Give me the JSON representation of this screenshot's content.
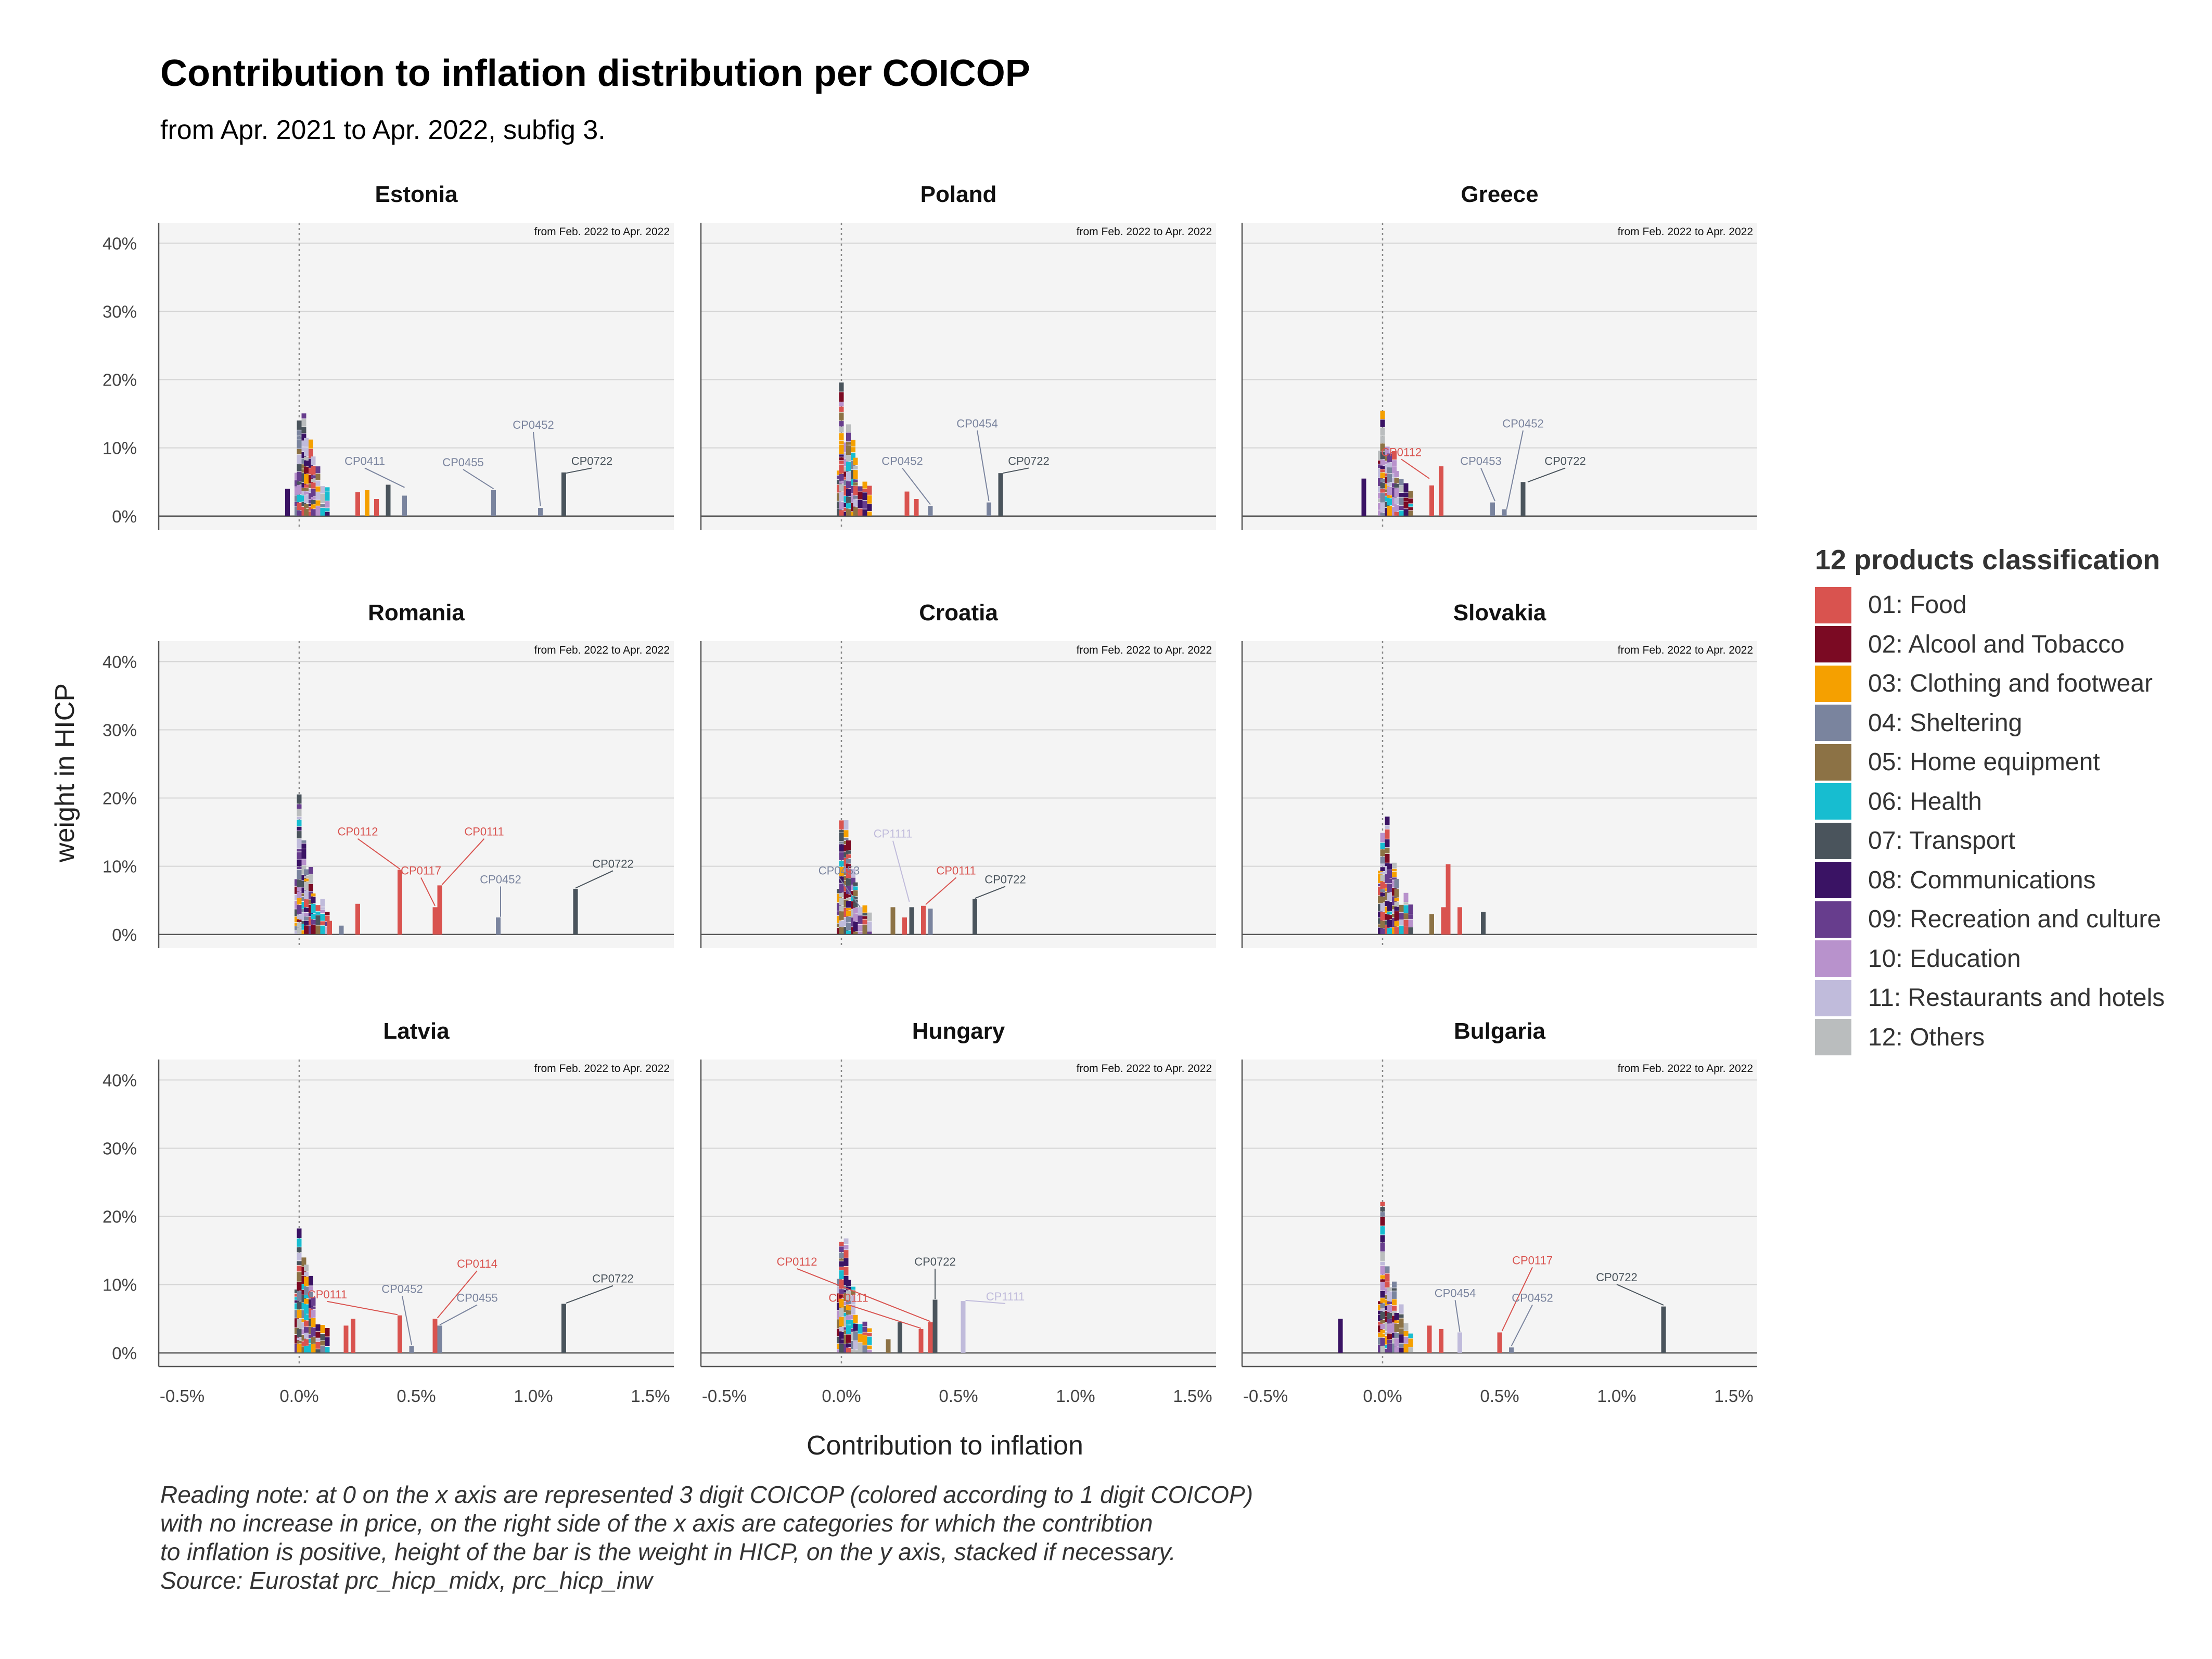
{
  "title": "Contribution to inflation distribution per COICOP",
  "subtitle": "from Apr. 2021 to Apr. 2022, subfig 3.",
  "x_axis_title": "Contribution to inflation",
  "y_axis_title": "weight in HICP",
  "legend": {
    "title": "12 products classification",
    "items": [
      {
        "label": "01: Food",
        "color": "#d9534f"
      },
      {
        "label": "02: Alcool and Tobacco",
        "color": "#7b0a23"
      },
      {
        "label": "03: Clothing and footwear",
        "color": "#f5a000"
      },
      {
        "label": "04: Sheltering",
        "color": "#7a849e"
      },
      {
        "label": "05: Home equipment",
        "color": "#8c7245"
      },
      {
        "label": "06: Health",
        "color": "#17bdd0"
      },
      {
        "label": "07: Transport",
        "color": "#4a545c"
      },
      {
        "label": "08: Communications",
        "color": "#3a1364"
      },
      {
        "label": "09: Recreation and culture",
        "color": "#673d8d"
      },
      {
        "label": "10: Education",
        "color": "#b892cc"
      },
      {
        "label": "11: Restaurants and hotels",
        "color": "#c0bbdb"
      },
      {
        "label": "12: Others",
        "color": "#babdbe"
      }
    ]
  },
  "reading_note": [
    "Reading note: at 0 on the x axis are represented 3 digit COICOP (colored according to 1 digit COICOP)",
    "with no increase in price, on the right side of the x axis are categories for which the contribtion",
    "to inflation is positive, height of the bar is the weight in HICP, on the y axis, stacked if necessary.",
    "Source: Eurostat prc_hicp_midx, prc_hicp_inw"
  ],
  "chart_data": {
    "type": "bar",
    "facets": 9,
    "x_ticks": [
      "-0.5%",
      "0.0%",
      "0.5%",
      "1.0%",
      "1.5%"
    ],
    "x_tick_values": [
      -0.5,
      0.0,
      0.5,
      1.0,
      1.5
    ],
    "y_ticks": [
      "0%",
      "10%",
      "20%",
      "30%",
      "40%"
    ],
    "y_tick_values": [
      0,
      10,
      20,
      30,
      40
    ],
    "xlim": [
      -0.6,
      1.6
    ],
    "ylim": [
      -2,
      43
    ],
    "panel_note": "from Feb. 2022 to Apr. 2022",
    "panels": [
      {
        "name": "Estonia",
        "bars": [
          [
            -0.05,
            4,
            7
          ],
          [
            0.25,
            3.5,
            0
          ],
          [
            0.29,
            3.8,
            2
          ],
          [
            0.33,
            2.5,
            0
          ],
          [
            0.38,
            4.6,
            6
          ],
          [
            0.45,
            3,
            3
          ],
          [
            0.83,
            3.8,
            3
          ],
          [
            1.03,
            1.2,
            3
          ],
          [
            1.13,
            6.4,
            6
          ]
        ],
        "labels": [
          {
            "text": "CP0411",
            "lx": 0.28,
            "ly": 7.5,
            "px": 0.45,
            "py": 4.2,
            "c": 3
          },
          {
            "text": "CP0455",
            "lx": 0.7,
            "ly": 7.3,
            "px": 0.83,
            "py": 4,
            "c": 3
          },
          {
            "text": "CP0452",
            "lx": 1.0,
            "ly": 12.8,
            "px": 1.03,
            "py": 1.5,
            "c": 3
          },
          {
            "text": "CP0722",
            "lx": 1.25,
            "ly": 7.5,
            "px": 1.14,
            "py": 6.3,
            "c": 6
          }
        ]
      },
      {
        "name": "Poland",
        "bars": [
          [
            0.28,
            3.6,
            0
          ],
          [
            0.32,
            2.5,
            0
          ],
          [
            0.38,
            1.5,
            3
          ],
          [
            0.63,
            2,
            3
          ],
          [
            0.68,
            6.3,
            6
          ]
        ],
        "labels": [
          {
            "text": "CP0452",
            "lx": 0.26,
            "ly": 7.5,
            "px": 0.38,
            "py": 1.7,
            "c": 3
          },
          {
            "text": "CP0454",
            "lx": 0.58,
            "ly": 13,
            "px": 0.63,
            "py": 2.2,
            "c": 3
          },
          {
            "text": "CP0722",
            "lx": 0.8,
            "ly": 7.5,
            "px": 0.69,
            "py": 6.3,
            "c": 6
          }
        ]
      },
      {
        "name": "Greece",
        "bars": [
          [
            -0.08,
            5.5,
            7
          ],
          [
            0.21,
            4.5,
            0
          ],
          [
            0.25,
            7.3,
            0
          ],
          [
            0.47,
            2,
            3
          ],
          [
            0.52,
            1,
            3
          ],
          [
            0.6,
            5,
            6
          ]
        ],
        "labels": [
          {
            "text": "CP0112",
            "lx": 0.08,
            "ly": 8.8,
            "px": 0.2,
            "py": 5.5,
            "c": 0
          },
          {
            "text": "CP0453",
            "lx": 0.42,
            "ly": 7.5,
            "px": 0.48,
            "py": 2.2,
            "c": 3
          },
          {
            "text": "CP0452",
            "lx": 0.6,
            "ly": 13,
            "px": 0.53,
            "py": 1,
            "c": 3
          },
          {
            "text": "CP0722",
            "lx": 0.78,
            "ly": 7.5,
            "px": 0.62,
            "py": 5,
            "c": 6
          }
        ]
      },
      {
        "name": "Romania",
        "bars": [
          [
            0.13,
            2,
            0
          ],
          [
            0.18,
            1.3,
            3
          ],
          [
            0.25,
            4.5,
            0
          ],
          [
            0.43,
            9.5,
            0
          ],
          [
            0.58,
            4,
            0
          ],
          [
            0.6,
            7.2,
            0
          ],
          [
            0.85,
            2.5,
            3
          ],
          [
            1.18,
            6.7,
            6
          ]
        ],
        "labels": [
          {
            "text": "CP0112",
            "lx": 0.25,
            "ly": 14.5,
            "px": 0.43,
            "py": 9.6,
            "c": 0
          },
          {
            "text": "CP0117",
            "lx": 0.52,
            "ly": 8.8,
            "px": 0.58,
            "py": 4.2,
            "c": 0
          },
          {
            "text": "CP0111",
            "lx": 0.79,
            "ly": 14.5,
            "px": 0.61,
            "py": 7.3,
            "c": 0
          },
          {
            "text": "CP0452",
            "lx": 0.86,
            "ly": 7.5,
            "px": 0.86,
            "py": 2.6,
            "c": 3
          },
          {
            "text": "CP0722",
            "lx": 1.34,
            "ly": 9.8,
            "px": 1.18,
            "py": 6.8,
            "c": 6
          }
        ]
      },
      {
        "name": "Croatia",
        "bars": [
          [
            0.22,
            4,
            4
          ],
          [
            0.27,
            2.5,
            0
          ],
          [
            0.3,
            4,
            6
          ],
          [
            0.38,
            3.8,
            3
          ],
          [
            0.57,
            5.2,
            6
          ],
          [
            0.35,
            4.2,
            0
          ]
        ],
        "labels": [
          {
            "text": "CP0453",
            "lx": -0.01,
            "ly": 8.8,
            "px": 0.08,
            "py": 4,
            "c": 3
          },
          {
            "text": "CP1111",
            "lx": 0.22,
            "ly": 14.2,
            "px": 0.29,
            "py": 4.8,
            "c": 10
          },
          {
            "text": "CP0111",
            "lx": 0.49,
            "ly": 8.8,
            "px": 0.36,
            "py": 4.4,
            "c": 0
          },
          {
            "text": "CP0722",
            "lx": 0.7,
            "ly": 7.5,
            "px": 0.57,
            "py": 5.3,
            "c": 6
          }
        ]
      },
      {
        "name": "Slovakia",
        "bars": [
          [
            0.21,
            3,
            4
          ],
          [
            0.26,
            4,
            0
          ],
          [
            0.28,
            10.3,
            0
          ],
          [
            0.33,
            4,
            0
          ],
          [
            0.43,
            3.3,
            6
          ]
        ],
        "labels": []
      },
      {
        "name": "Latvia",
        "bars": [
          [
            0.2,
            4,
            0
          ],
          [
            0.23,
            5,
            0
          ],
          [
            0.43,
            5.5,
            0
          ],
          [
            0.48,
            1,
            3
          ],
          [
            0.58,
            5,
            0
          ],
          [
            0.6,
            4,
            3
          ],
          [
            1.13,
            7.2,
            6
          ]
        ],
        "labels": [
          {
            "text": "CP0111",
            "lx": 0.12,
            "ly": 8,
            "px": 0.42,
            "py": 5.6,
            "c": 0
          },
          {
            "text": "CP0452",
            "lx": 0.44,
            "ly": 8.8,
            "px": 0.48,
            "py": 1.2,
            "c": 3
          },
          {
            "text": "CP0114",
            "lx": 0.76,
            "ly": 12.5,
            "px": 0.59,
            "py": 5.1,
            "c": 0
          },
          {
            "text": "CP0455",
            "lx": 0.76,
            "ly": 7.5,
            "px": 0.6,
            "py": 4.1,
            "c": 3
          },
          {
            "text": "CP0722",
            "lx": 1.34,
            "ly": 10.3,
            "px": 1.14,
            "py": 7.3,
            "c": 6
          }
        ]
      },
      {
        "name": "Hungary",
        "bars": [
          [
            0.25,
            4.5,
            6
          ],
          [
            0.2,
            2,
            4
          ],
          [
            0.34,
            3.5,
            0
          ],
          [
            0.38,
            4.5,
            0
          ],
          [
            0.4,
            7.8,
            6
          ],
          [
            0.52,
            7.6,
            10
          ]
        ],
        "labels": [
          {
            "text": "CP0112",
            "lx": -0.19,
            "ly": 12.8,
            "px": 0.38,
            "py": 4.6,
            "c": 0
          },
          {
            "text": "CP0111",
            "lx": 0.03,
            "ly": 7.5,
            "px": 0.34,
            "py": 3.6,
            "c": 0
          },
          {
            "text": "CP0722",
            "lx": 0.4,
            "ly": 12.8,
            "px": 0.4,
            "py": 7.9,
            "c": 6
          },
          {
            "text": "CP1111",
            "lx": 0.7,
            "ly": 7.7,
            "px": 0.53,
            "py": 7.7,
            "c": 10
          }
        ]
      },
      {
        "name": "Bulgaria",
        "bars": [
          [
            -0.18,
            5,
            7
          ],
          [
            0.2,
            4,
            0
          ],
          [
            0.25,
            3.5,
            0
          ],
          [
            0.33,
            3,
            10
          ],
          [
            0.5,
            3,
            0
          ],
          [
            0.55,
            0.8,
            3
          ],
          [
            1.2,
            6.8,
            6
          ]
        ],
        "labels": [
          {
            "text": "CP0454",
            "lx": 0.31,
            "ly": 8.2,
            "px": 0.33,
            "py": 3.1,
            "c": 3
          },
          {
            "text": "CP0117",
            "lx": 0.64,
            "ly": 13,
            "px": 0.51,
            "py": 3.2,
            "c": 0
          },
          {
            "text": "CP0452",
            "lx": 0.64,
            "ly": 7.5,
            "px": 0.55,
            "py": 1,
            "c": 3
          },
          {
            "text": "CP0722",
            "lx": 1.0,
            "ly": 10.5,
            "px": 1.2,
            "py": 7,
            "c": 6
          }
        ]
      }
    ]
  }
}
